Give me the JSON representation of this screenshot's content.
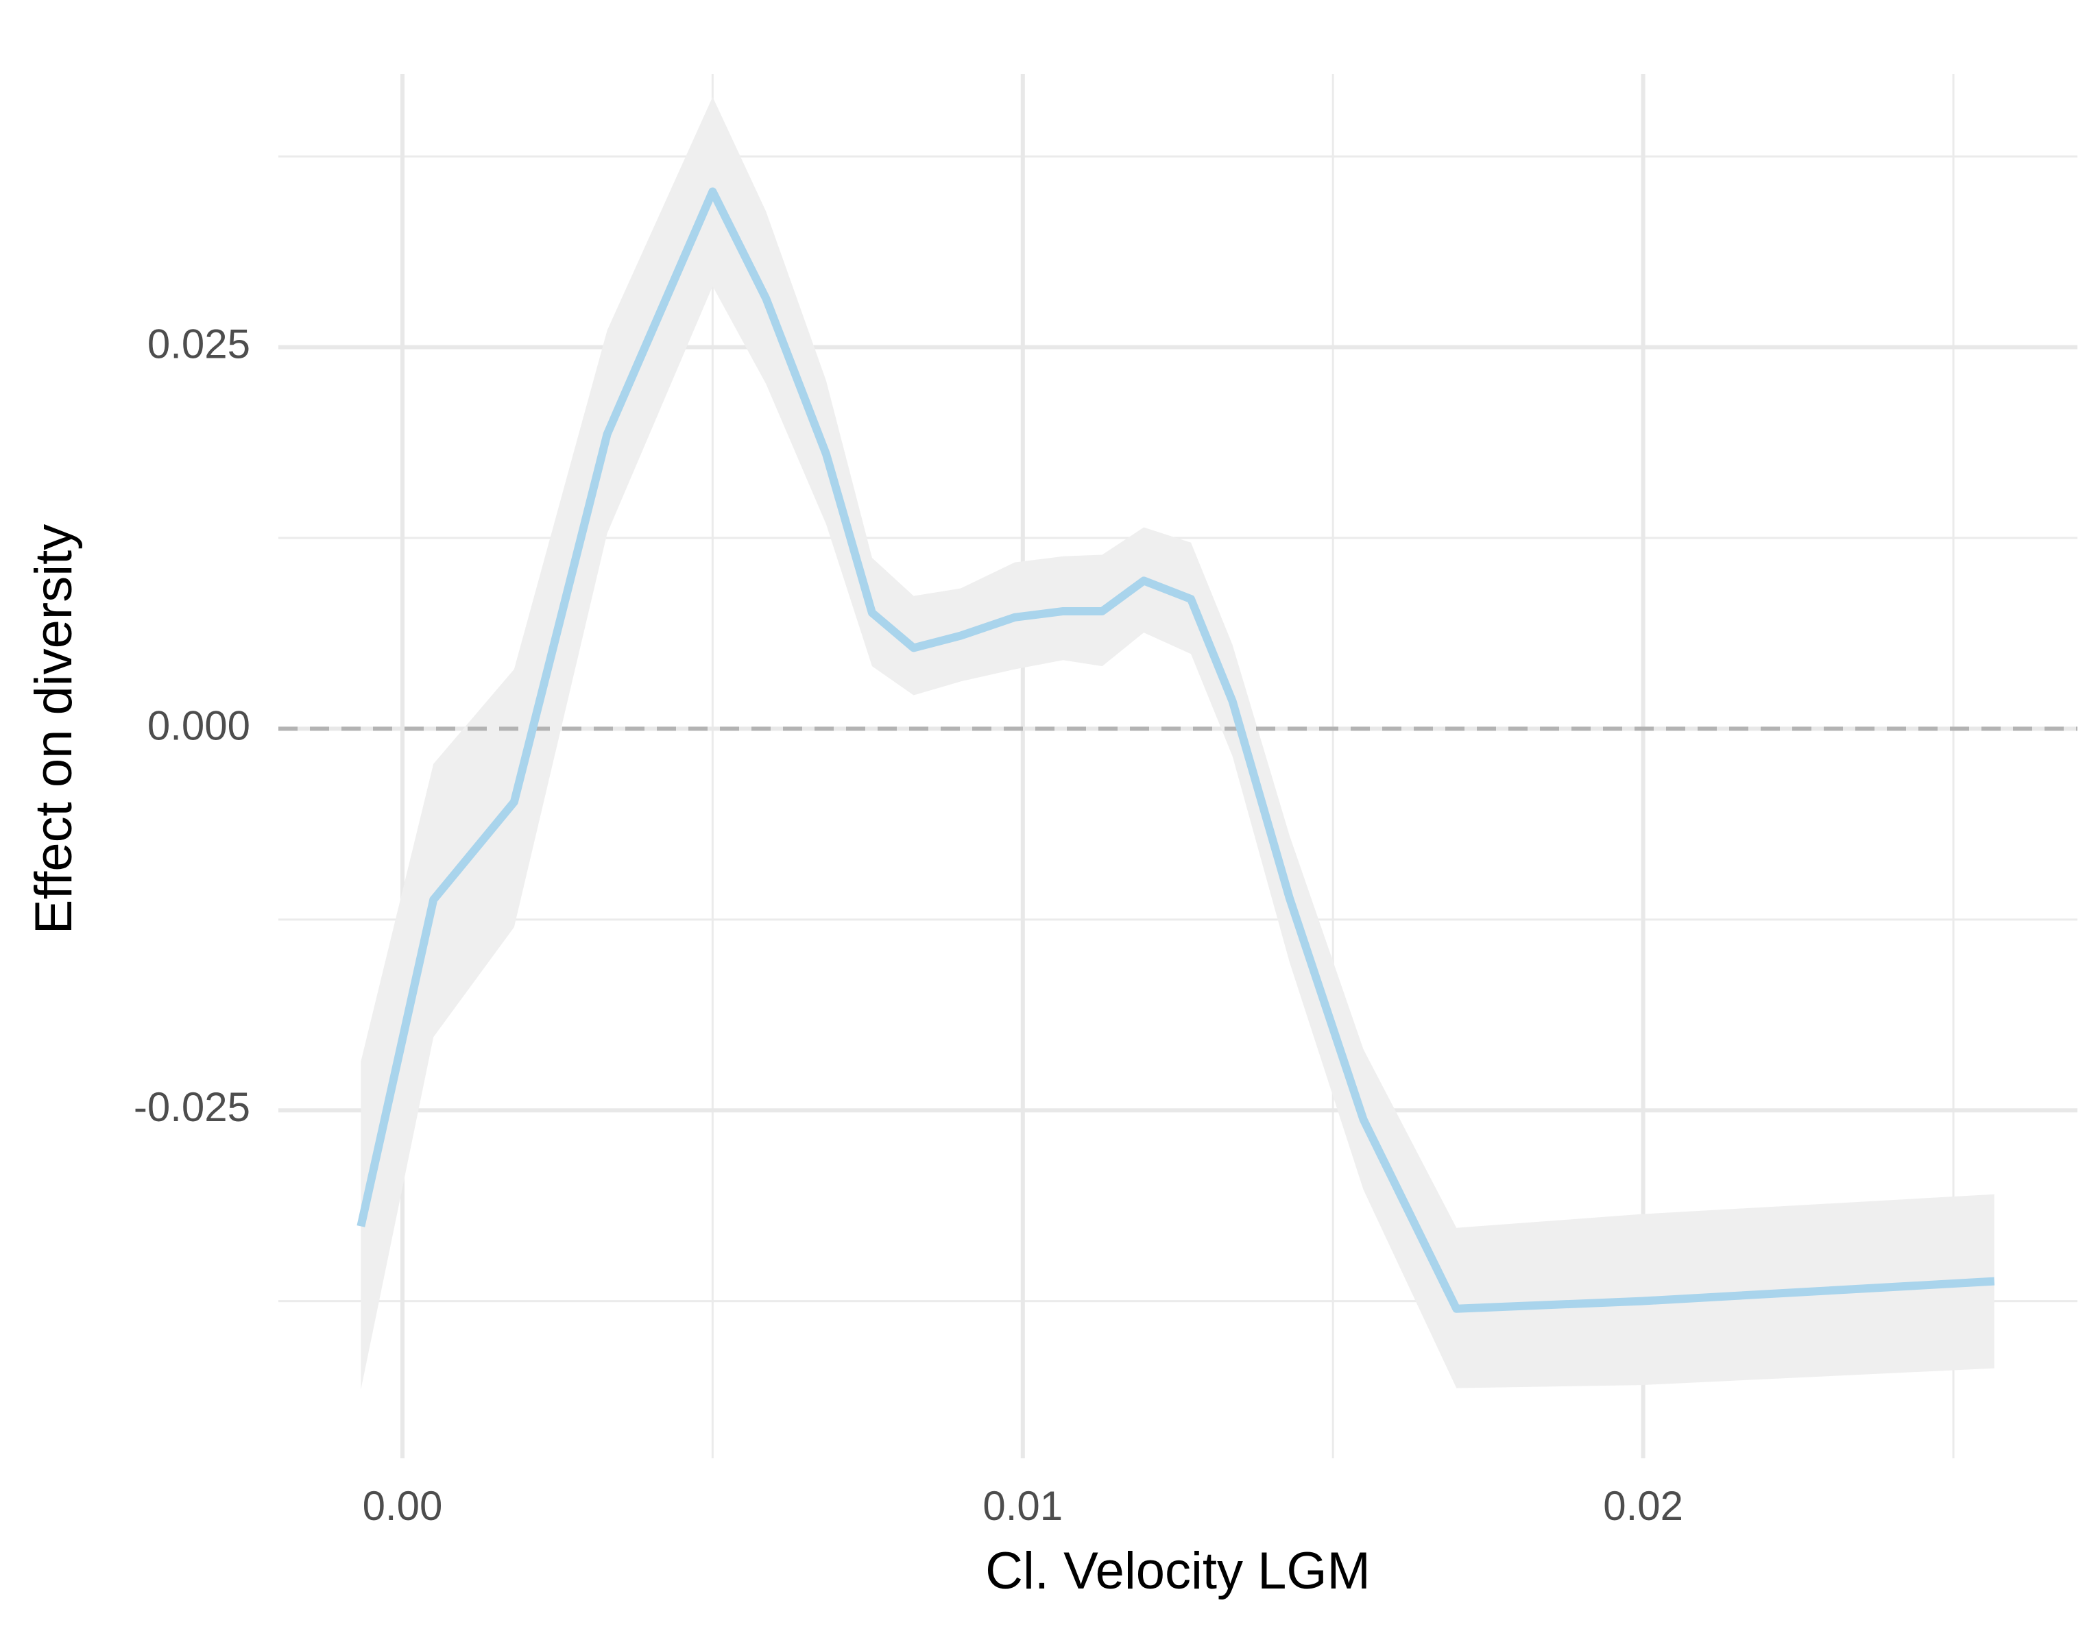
{
  "chart_data": {
    "type": "line",
    "x_label": "Cl. Velocity LGM",
    "y_label": "Effect on diversity",
    "x": [
      -0.00067,
      0.0005,
      0.0018,
      0.0033,
      0.005,
      0.00586,
      0.00683,
      0.00757,
      0.00824,
      0.009,
      0.00987,
      0.01065,
      0.01128,
      0.01195,
      0.01271,
      0.01338,
      0.0143,
      0.01549,
      0.01699,
      0.01998,
      0.02566
    ],
    "series": [
      {
        "color": "#a9d4ec",
        "values": [
          -0.0326,
          -0.0112,
          -0.0048,
          0.0193,
          0.0352,
          0.0282,
          0.018,
          0.0076,
          0.0053,
          0.0061,
          0.0073,
          0.0077,
          0.0077,
          0.0097,
          0.0085,
          0.0018,
          -0.0111,
          -0.0256,
          -0.038,
          -0.0375,
          -0.0362
        ],
        "upper": [
          -0.0218,
          -0.0023,
          0.0039,
          0.0261,
          0.0414,
          0.0339,
          0.0228,
          0.0112,
          0.0087,
          0.0092,
          0.0109,
          0.0113,
          0.0114,
          0.0132,
          0.0122,
          0.0055,
          -0.007,
          -0.021,
          -0.0327,
          -0.0318,
          -0.0305
        ],
        "lower": [
          -0.0433,
          -0.0202,
          -0.013,
          0.0128,
          0.029,
          0.0226,
          0.0134,
          0.0041,
          0.0022,
          0.0031,
          0.0039,
          0.0045,
          0.0041,
          0.0063,
          0.0049,
          -0.0018,
          -0.0153,
          -0.0302,
          -0.0432,
          -0.043,
          -0.0419
        ],
        "band_color": "#efefef"
      }
    ],
    "xlim": [
      -0.002,
      0.027
    ],
    "ylim": [
      -0.0478,
      0.0429
    ],
    "xticks": [
      {
        "value": 0,
        "label": "0.00"
      },
      0.01,
      0.02
    ],
    "yticks": [
      -0.025,
      {
        "value": 0,
        "label": "0.000"
      },
      0.025
    ],
    "x_minor_ticks": [
      0.005,
      0.015,
      0.025
    ],
    "y_minor_ticks": [
      -0.0375,
      -0.0125,
      0.0125,
      0.0375
    ],
    "hline": 0,
    "grid": true
  }
}
